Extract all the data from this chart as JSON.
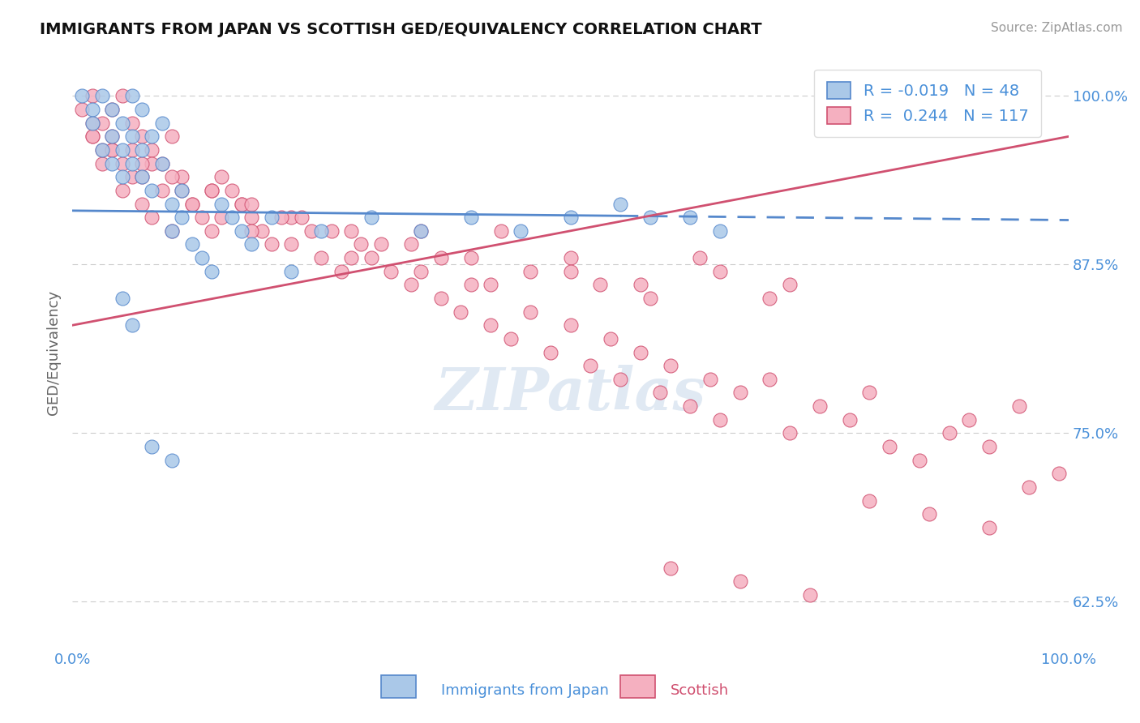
{
  "title": "IMMIGRANTS FROM JAPAN VS SCOTTISH GED/EQUIVALENCY CORRELATION CHART",
  "source": "Source: ZipAtlas.com",
  "ylabel": "GED/Equivalency",
  "xmin": 0.0,
  "xmax": 100.0,
  "ymin": 59.0,
  "ymax": 103.0,
  "yticks": [
    62.5,
    75.0,
    87.5,
    100.0
  ],
  "ytick_labels": [
    "62.5%",
    "75.0%",
    "87.5%",
    "100.0%"
  ],
  "blue_R": -0.019,
  "blue_N": 48,
  "pink_R": 0.244,
  "pink_N": 117,
  "blue_color": "#aac8e8",
  "pink_color": "#f5b0c0",
  "blue_line_color": "#5588cc",
  "pink_line_color": "#d05070",
  "legend_blue_label": "Immigrants from Japan",
  "legend_pink_label": "Scottish",
  "label_color": "#4a90d9",
  "background_color": "#ffffff",
  "blue_line_start_y": 91.5,
  "blue_line_end_y": 90.8,
  "blue_line_solid_end_x": 55,
  "pink_line_start_y": 83.0,
  "pink_line_end_y": 97.0,
  "blue_scatter_x": [
    1,
    2,
    2,
    3,
    3,
    4,
    4,
    4,
    5,
    5,
    5,
    6,
    6,
    6,
    7,
    7,
    7,
    8,
    8,
    9,
    9,
    10,
    10,
    11,
    11,
    12,
    13,
    14,
    15,
    16,
    17,
    18,
    20,
    22,
    25,
    30,
    35,
    40,
    45,
    50,
    55,
    58,
    62,
    65,
    5,
    6,
    8,
    10
  ],
  "blue_scatter_y": [
    100,
    99,
    98,
    100,
    96,
    99,
    97,
    95,
    98,
    96,
    94,
    100,
    97,
    95,
    99,
    96,
    94,
    97,
    93,
    98,
    95,
    92,
    90,
    93,
    91,
    89,
    88,
    87,
    92,
    91,
    90,
    89,
    91,
    87,
    90,
    91,
    90,
    91,
    90,
    91,
    92,
    91,
    91,
    90,
    85,
    83,
    74,
    73
  ],
  "pink_scatter_x": [
    1,
    2,
    2,
    3,
    3,
    4,
    4,
    5,
    5,
    6,
    6,
    7,
    7,
    8,
    8,
    9,
    10,
    10,
    11,
    12,
    13,
    14,
    15,
    16,
    17,
    18,
    19,
    20,
    22,
    24,
    25,
    27,
    29,
    30,
    32,
    34,
    35,
    37,
    39,
    40,
    42,
    44,
    46,
    48,
    50,
    52,
    54,
    55,
    57,
    59,
    60,
    62,
    64,
    65,
    67,
    70,
    72,
    75,
    78,
    80,
    82,
    85,
    88,
    90,
    92,
    95,
    3,
    5,
    7,
    9,
    12,
    15,
    18,
    22,
    28,
    35,
    42,
    50,
    58,
    65,
    72,
    2,
    4,
    6,
    8,
    11,
    14,
    17,
    21,
    26,
    31,
    37,
    43,
    50,
    57,
    63,
    70,
    2,
    4,
    7,
    10,
    14,
    18,
    23,
    28,
    34,
    40,
    46,
    53,
    60,
    67,
    74,
    80,
    86,
    92,
    96,
    99
  ],
  "pink_scatter_y": [
    99,
    100,
    97,
    98,
    95,
    99,
    96,
    100,
    93,
    98,
    94,
    97,
    92,
    96,
    91,
    95,
    97,
    90,
    93,
    92,
    91,
    90,
    94,
    93,
    92,
    91,
    90,
    89,
    91,
    90,
    88,
    87,
    89,
    88,
    87,
    86,
    90,
    85,
    84,
    86,
    83,
    82,
    84,
    81,
    83,
    80,
    82,
    79,
    81,
    78,
    80,
    77,
    79,
    76,
    78,
    79,
    75,
    77,
    76,
    78,
    74,
    73,
    75,
    76,
    74,
    77,
    96,
    95,
    94,
    93,
    92,
    91,
    90,
    89,
    88,
    87,
    86,
    88,
    85,
    87,
    86,
    98,
    97,
    96,
    95,
    94,
    93,
    92,
    91,
    90,
    89,
    88,
    90,
    87,
    86,
    88,
    85,
    97,
    96,
    95,
    94,
    93,
    92,
    91,
    90,
    89,
    88,
    87,
    86,
    65,
    64,
    63,
    70,
    69,
    68,
    71,
    72
  ]
}
